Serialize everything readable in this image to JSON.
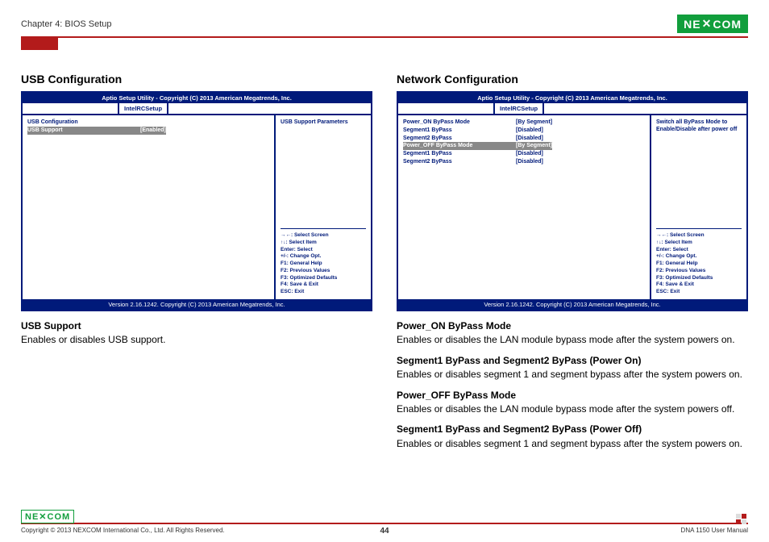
{
  "header": {
    "chapter": "Chapter 4: BIOS Setup",
    "logo_text": "NE COM",
    "logo_x": "✕"
  },
  "left_section": {
    "title": "USB Configuration",
    "bios": {
      "top_bar": "Aptio Setup Utility - Copyright (C) 2013 American Megatrends, Inc.",
      "tab1_blank": "",
      "tab_active": "IntelRCSetup",
      "rows": [
        {
          "label": "USB Configuration",
          "value": "",
          "sel": false
        },
        {
          "label": "USB Support",
          "value": "[Enabled]",
          "sel": true
        }
      ],
      "help": "USB Support Parameters",
      "keys": [
        "→←: Select Screen",
        "↑↓: Select Item",
        "Enter: Select",
        "+/-: Change Opt.",
        "F1: General Help",
        "F2: Previous Values",
        "F3: Optimized Defaults",
        "F4: Save & Exit",
        "ESC: Exit"
      ],
      "footer": "Version 2.16.1242. Copyright (C) 2013 American Megatrends, Inc."
    },
    "desc_heading": "USB Support",
    "desc_text": "Enables or disables USB support."
  },
  "right_section": {
    "title": "Network Configuration",
    "bios": {
      "top_bar": "Aptio Setup Utility - Copyright (C) 2013 American Megatrends, Inc.",
      "tab_active": "IntelRCSetup",
      "rows": [
        {
          "label": "Power_ON ByPass Mode",
          "value": "[By Segment]",
          "sel": false
        },
        {
          "label": "Segment1 ByPass",
          "value": "[Disabled]",
          "sel": false
        },
        {
          "label": "Segment2 ByPass",
          "value": "[Disabled]",
          "sel": false
        },
        {
          "label": "Power_OFF ByPass Mode",
          "value": "[By Segment]",
          "sel": true
        },
        {
          "label": "Segment1 ByPass",
          "value": "[Disabled]",
          "sel": false
        },
        {
          "label": "Segment2 ByPass",
          "value": "[Disabled]",
          "sel": false
        }
      ],
      "help": "Switch all ByPass Mode to Enable/Disable after power off",
      "keys": [
        "→←: Select Screen",
        "↑↓: Select Item",
        "Enter: Select",
        "+/-: Change Opt.",
        "F1: General Help",
        "F2: Previous Values",
        "F3: Optimized Defaults",
        "F4: Save & Exit",
        "ESC: Exit"
      ],
      "footer": "Version 2.16.1242. Copyright (C) 2013 American Megatrends, Inc."
    },
    "descs": [
      {
        "h": "Power_ON ByPass Mode",
        "t": "Enables or disables the LAN module bypass mode after the system powers on."
      },
      {
        "h": "Segment1 ByPass and Segment2 ByPass (Power On)",
        "t": "Enables or disables segment 1 and segment bypass after the system powers on."
      },
      {
        "h": "Power_OFF ByPass Mode",
        "t": "Enables or disables the LAN module bypass mode after the system powers off."
      },
      {
        "h": "Segment1 ByPass and Segment2 ByPass (Power Off)",
        "t": "Enables or disables segment 1 and segment bypass after the system powers on."
      }
    ]
  },
  "footer": {
    "copyright": "Copyright © 2013 NEXCOM International Co., Ltd. All Rights Reserved.",
    "page": "44",
    "manual": "DNA 1150 User Manual",
    "logo": "NE✕COM"
  },
  "colors": {
    "bios_blue": "#001a7a",
    "red": "#b31b1b",
    "green": "#119e3c",
    "sel_bg": "#888888"
  }
}
